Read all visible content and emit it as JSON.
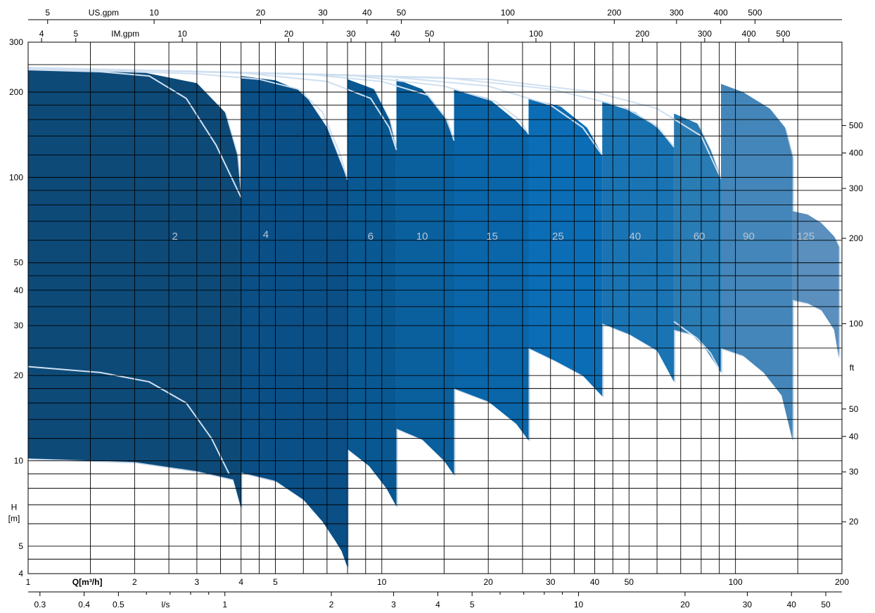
{
  "chart_data": {
    "type": "area",
    "x_scale": "log",
    "y_scale": "log",
    "x_axis": {
      "label": "Q[m³/h]",
      "range": [
        1,
        200
      ],
      "ticks": [
        1,
        2,
        3,
        4,
        5,
        10,
        20,
        30,
        40,
        50,
        100,
        200
      ],
      "tick_labels": [
        "1",
        "2",
        "3",
        "4",
        "5",
        "10",
        "20",
        "30",
        "40",
        "50",
        "100",
        "200"
      ]
    },
    "x_axis_ls": {
      "label": "l/s",
      "ticks": [
        0.3,
        0.4,
        0.5,
        1,
        2,
        3,
        4,
        5,
        10,
        20,
        30,
        40,
        50
      ],
      "tick_labels": [
        "0.3",
        "0.4",
        "0.5",
        "1",
        "2",
        "3",
        "4",
        "5",
        "10",
        "20",
        "30",
        "40",
        "50"
      ]
    },
    "x_axis_usgpm": {
      "label": "US.gpm",
      "ticks": [
        5,
        10,
        20,
        30,
        40,
        50,
        100,
        200,
        300,
        400,
        500
      ],
      "tick_labels": [
        "5",
        "10",
        "20",
        "30",
        "40",
        "50",
        "100",
        "200",
        "300",
        "400",
        "500"
      ]
    },
    "x_axis_imgpm": {
      "label": "IM.gpm",
      "ticks": [
        4,
        5,
        10,
        20,
        30,
        40,
        50,
        100,
        200,
        300,
        400,
        500
      ],
      "tick_labels": [
        "4",
        "5",
        "10",
        "20",
        "30",
        "40",
        "50",
        "100",
        "200",
        "300",
        "400",
        "500"
      ]
    },
    "y_axis": {
      "label_line1": "H",
      "label_line2": "[m]",
      "range": [
        4,
        300
      ],
      "ticks": [
        4,
        5,
        10,
        20,
        30,
        40,
        50,
        100,
        200,
        300
      ],
      "tick_labels": [
        "4",
        "5",
        "10",
        "20",
        "30",
        "40",
        "50",
        "100",
        "200",
        "300"
      ]
    },
    "y_axis_ft": {
      "label": "ft",
      "ticks": [
        20,
        30,
        40,
        50,
        100,
        200,
        300,
        400,
        500
      ],
      "tick_labels": [
        "20",
        "30",
        "40",
        "50",
        "100",
        "200",
        "300",
        "400",
        "500"
      ]
    },
    "colors": {
      "2": "#0d4a78",
      "4": "#0a4f86",
      "6": "#095892",
      "10": "#0a5f9d",
      "15": "#0a65a9",
      "25": "#0b6db5",
      "40": "#1a74b3",
      "60": "#2a7cb4",
      "90": "#4486b9",
      "125": "#5a8fbe"
    },
    "series": [
      {
        "name": "2",
        "label_at": [
          2.6,
          62
        ],
        "top": [
          [
            1,
            245
          ],
          [
            2,
            238
          ],
          [
            3,
            215
          ],
          [
            3.6,
            170
          ],
          [
            3.9,
            120
          ],
          [
            4,
            85
          ]
        ],
        "bottom": [
          [
            1,
            10.2
          ],
          [
            2,
            9.9
          ],
          [
            3,
            9.2
          ],
          [
            3.8,
            8.6
          ],
          [
            4,
            6.8
          ]
        ],
        "sub_curves": [
          [
            [
              1,
              240
            ],
            [
              1.6,
              236
            ],
            [
              2.2,
              228
            ],
            [
              2.8,
              190
            ],
            [
              3.4,
              130
            ],
            [
              4,
              85
            ]
          ],
          [
            [
              1,
              21.5
            ],
            [
              1.6,
              20.5
            ],
            [
              2.2,
              19.0
            ],
            [
              2.8,
              16.0
            ],
            [
              3.3,
              12.0
            ],
            [
              3.7,
              9.0
            ]
          ]
        ]
      },
      {
        "name": "4",
        "label_at": [
          4.7,
          63
        ],
        "top": [
          [
            4,
            228
          ],
          [
            5,
            220
          ],
          [
            6,
            200
          ],
          [
            7,
            150
          ],
          [
            7.6,
            115
          ],
          [
            8,
            98
          ]
        ],
        "bottom": [
          [
            4,
            9.1
          ],
          [
            5,
            8.5
          ],
          [
            6,
            7.3
          ],
          [
            6.8,
            6.1
          ],
          [
            7.4,
            5.2
          ],
          [
            7.7,
            4.8
          ],
          [
            8,
            4.2
          ]
        ],
        "sub_curves": [
          [
            [
              1,
              242
            ],
            [
              3,
              232
            ],
            [
              4.5,
              222
            ],
            [
              5.8,
              205
            ],
            [
              6.8,
              170
            ],
            [
              7.6,
              122
            ],
            [
              8,
              98
            ]
          ]
        ]
      },
      {
        "name": "6",
        "label_at": [
          9.3,
          62
        ],
        "top": [
          [
            8,
            222
          ],
          [
            9.5,
            205
          ],
          [
            10.5,
            160
          ],
          [
            11,
            125
          ]
        ],
        "bottom": [
          [
            8,
            11
          ],
          [
            9.2,
            9.6
          ],
          [
            10.3,
            8.0
          ],
          [
            11,
            6.9
          ]
        ],
        "sub_curves": [
          [
            [
              1,
              243
            ],
            [
              4,
              234
            ],
            [
              7,
              218
            ],
            [
              9.3,
              190
            ],
            [
              10.5,
              150
            ],
            [
              11,
              125
            ]
          ]
        ]
      },
      {
        "name": "10",
        "label_at": [
          13,
          62
        ],
        "top": [
          [
            11,
            222
          ],
          [
            13,
            205
          ],
          [
            15,
            165
          ],
          [
            16,
            135
          ]
        ],
        "bottom": [
          [
            11,
            13
          ],
          [
            13,
            11.9
          ],
          [
            15,
            10.0
          ],
          [
            16,
            8.9
          ]
        ],
        "sub_curves": [
          [
            [
              1,
              244
            ],
            [
              6,
              232
            ],
            [
              10,
              218
            ],
            [
              13.5,
              195
            ],
            [
              15.3,
              160
            ],
            [
              16,
              135
            ]
          ]
        ]
      },
      {
        "name": "15",
        "label_at": [
          20.5,
          62
        ],
        "top": [
          [
            16,
            205
          ],
          [
            20,
            190
          ],
          [
            24,
            158
          ],
          [
            26,
            142
          ]
        ],
        "bottom": [
          [
            16,
            18
          ],
          [
            20,
            16.2
          ],
          [
            24,
            13.5
          ],
          [
            26,
            11.8
          ]
        ],
        "sub_curves": [
          [
            [
              1,
              244
            ],
            [
              8,
              230
            ],
            [
              15,
              210
            ],
            [
              21,
              185
            ],
            [
              24.5,
              160
            ],
            [
              26,
              142
            ]
          ]
        ]
      },
      {
        "name": "25",
        "label_at": [
          31.5,
          62
        ],
        "top": [
          [
            26,
            190
          ],
          [
            32,
            178
          ],
          [
            38,
            150
          ],
          [
            42,
            120
          ]
        ],
        "bottom": [
          [
            26,
            25
          ],
          [
            31,
            22.5
          ],
          [
            37,
            20.0
          ],
          [
            42,
            16.9
          ]
        ],
        "sub_curves": [
          [
            [
              1,
              244
            ],
            [
              10,
              228
            ],
            [
              20,
              210
            ],
            [
              30,
              180
            ],
            [
              37,
              150
            ],
            [
              42,
              120
            ]
          ]
        ]
      },
      {
        "name": "40",
        "label_at": [
          52,
          62
        ],
        "top": [
          [
            42,
            185
          ],
          [
            52,
            170
          ],
          [
            60,
            150
          ],
          [
            67,
            128
          ]
        ],
        "bottom": [
          [
            42,
            30.5
          ],
          [
            50,
            28.0
          ],
          [
            60,
            24.5
          ],
          [
            67,
            19.0
          ]
        ],
        "sub_curves": [
          [
            [
              1,
              244
            ],
            [
              15,
              225
            ],
            [
              30,
              205
            ],
            [
              48,
              178
            ],
            [
              60,
              152
            ],
            [
              67,
              128
            ]
          ],
          [
            [
              67,
              31
            ],
            [
              72,
              29
            ],
            [
              78,
              27
            ],
            [
              85,
              24
            ],
            [
              90,
              21
            ]
          ]
        ]
      },
      {
        "name": "60",
        "label_at": [
          79,
          62
        ],
        "top": [
          [
            67,
            168
          ],
          [
            78,
            155
          ],
          [
            85,
            125
          ],
          [
            91,
            99
          ]
        ],
        "bottom": [
          [
            67,
            29
          ],
          [
            75,
            28
          ],
          [
            82,
            25
          ],
          [
            91,
            20.5
          ]
        ],
        "sub_curves": [
          [
            [
              1,
              244
            ],
            [
              20,
              222
            ],
            [
              40,
              200
            ],
            [
              60,
              175
            ],
            [
              80,
              140
            ],
            [
              91,
              99
            ]
          ]
        ]
      },
      {
        "name": "90",
        "label_at": [
          109,
          62
        ],
        "top": [
          [
            91,
            214
          ],
          [
            105,
            200
          ],
          [
            125,
            175
          ],
          [
            138,
            150
          ],
          [
            145,
            118
          ]
        ],
        "bottom": [
          [
            91,
            25
          ],
          [
            105,
            23.5
          ],
          [
            120,
            20.5
          ],
          [
            135,
            17.0
          ],
          [
            145,
            11.8
          ]
        ],
        "sub_curves": []
      },
      {
        "name": "125",
        "label_at": [
          158,
          62
        ],
        "top": [
          [
            145,
            76
          ],
          [
            160,
            74
          ],
          [
            175,
            69
          ],
          [
            190,
            62
          ],
          [
            196,
            57
          ]
        ],
        "bottom": [
          [
            145,
            37
          ],
          [
            160,
            36
          ],
          [
            175,
            34
          ],
          [
            190,
            29
          ],
          [
            196,
            23
          ]
        ],
        "sub_curves": []
      }
    ]
  }
}
